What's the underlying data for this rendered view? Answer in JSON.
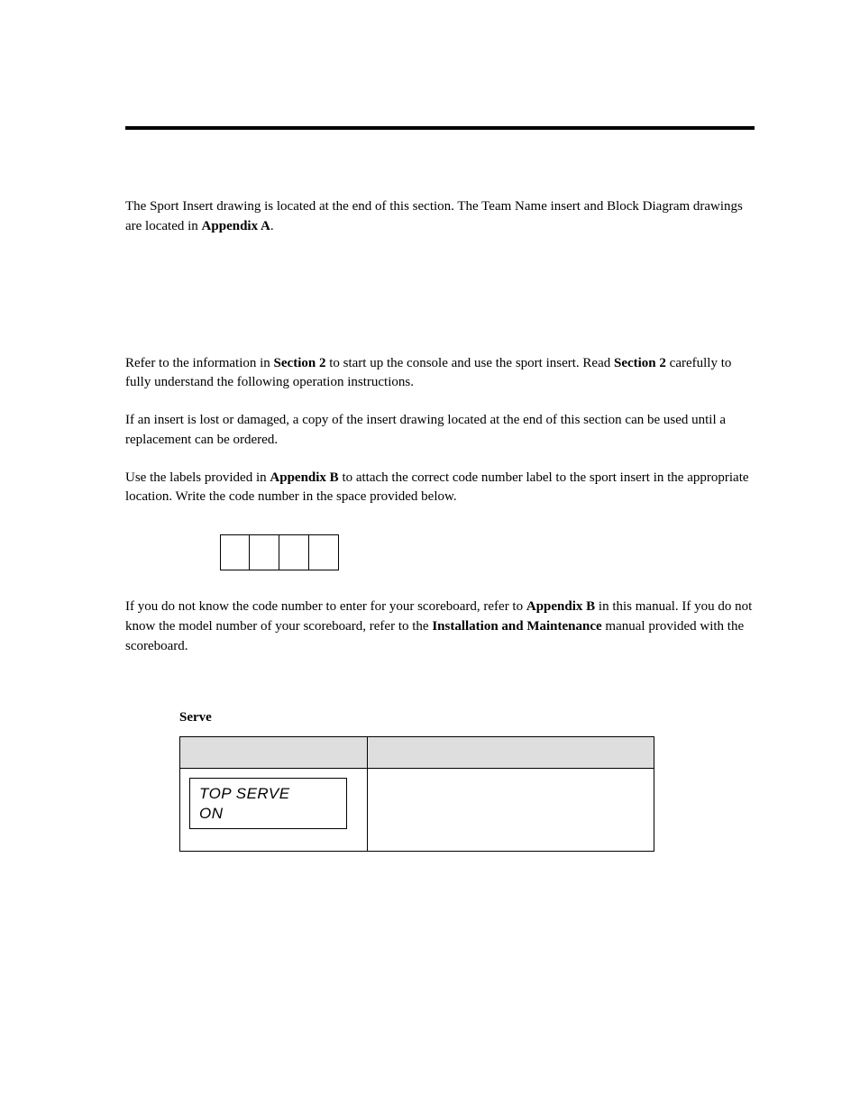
{
  "paragraphs": {
    "p1_part1": "The Sport Insert drawing is located at the end of this section. The Team Name insert and Block Diagram drawings are located in ",
    "p1_bold": "Appendix A",
    "p1_part2": ".",
    "p2_part1": "Refer to the information in ",
    "p2_bold1": "Section 2",
    "p2_part2": " to start up the console and use the sport insert. Read ",
    "p2_bold2": "Section 2",
    "p2_part3": " carefully to fully understand the following operation instructions.",
    "p3": "If an insert is lost or damaged, a copy of the insert drawing located at the end of this section can be used until a replacement can be ordered.",
    "p4_part1": "Use the labels provided in ",
    "p4_bold": "Appendix B",
    "p4_part2": " to attach the correct code number label to the sport insert in the appropriate location. Write the code number in the space provided below.",
    "p5_part1": "If you do not know the code number to enter for your scoreboard, refer to ",
    "p5_bold1": "Appendix B",
    "p5_part2": " in this manual. If you do not know the model number of your scoreboard, refer to the ",
    "p5_bold2": "Installation and Maintenance",
    "p5_part3": " manual provided with the scoreboard."
  },
  "serve": {
    "label": "Serve",
    "lcd_line1": "TOP SERVE",
    "lcd_line2": "ON"
  },
  "code_input": {
    "box_count": 4
  },
  "styling": {
    "page_bg": "#ffffff",
    "text_color": "#000000",
    "header_rule_color": "#000000",
    "header_rule_width": 4,
    "table_header_bg": "#dedede",
    "body_font": "Palatino Linotype",
    "body_fontsize": 15,
    "lcd_font": "Arial Narrow",
    "lcd_fontsize": 17
  }
}
